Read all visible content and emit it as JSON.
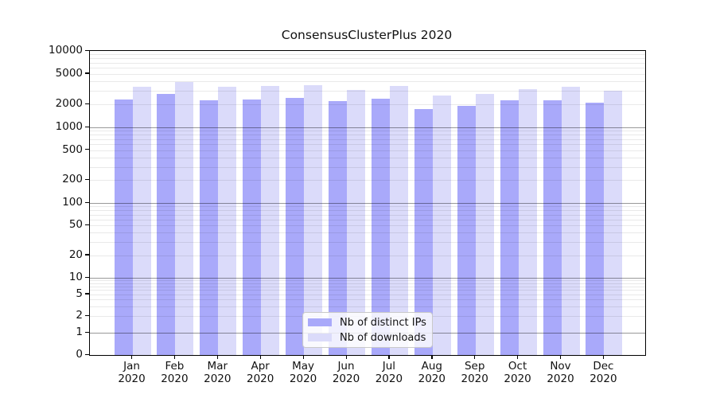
{
  "chart_data": {
    "type": "bar",
    "title": "ConsensusClusterPlus 2020",
    "scale": "log",
    "categories": [
      "Jan 2020",
      "Feb 2020",
      "Mar 2020",
      "Apr 2020",
      "May 2020",
      "Jun 2020",
      "Jul 2020",
      "Aug 2020",
      "Sep 2020",
      "Oct 2020",
      "Nov 2020",
      "Dec 2020"
    ],
    "series": [
      {
        "name": "Nb of distinct IPs",
        "color": "#a9a9fa",
        "values": [
          2330,
          2770,
          2280,
          2290,
          2430,
          2200,
          2350,
          1720,
          1900,
          2260,
          2260,
          2120
        ]
      },
      {
        "name": "Nb of downloads",
        "color": "#dbdbfa",
        "values": [
          3400,
          3950,
          3360,
          3480,
          3570,
          3090,
          3500,
          2620,
          2740,
          3160,
          3360,
          3050
        ]
      }
    ],
    "y_ticks": [
      0,
      1,
      2,
      5,
      10,
      20,
      50,
      100,
      200,
      500,
      1000,
      2000,
      5000,
      10000
    ],
    "ylim": [
      0,
      10000
    ],
    "xlabel": "",
    "ylabel": "",
    "grid": true,
    "legend_position": "bottom-center",
    "colors": {
      "bar_distinct_ips": "#a9a9fa",
      "bar_downloads": "#dbdbfa",
      "grid_major": "#999999",
      "grid_minor": "#e9e9e9",
      "axis": "#000000"
    }
  }
}
